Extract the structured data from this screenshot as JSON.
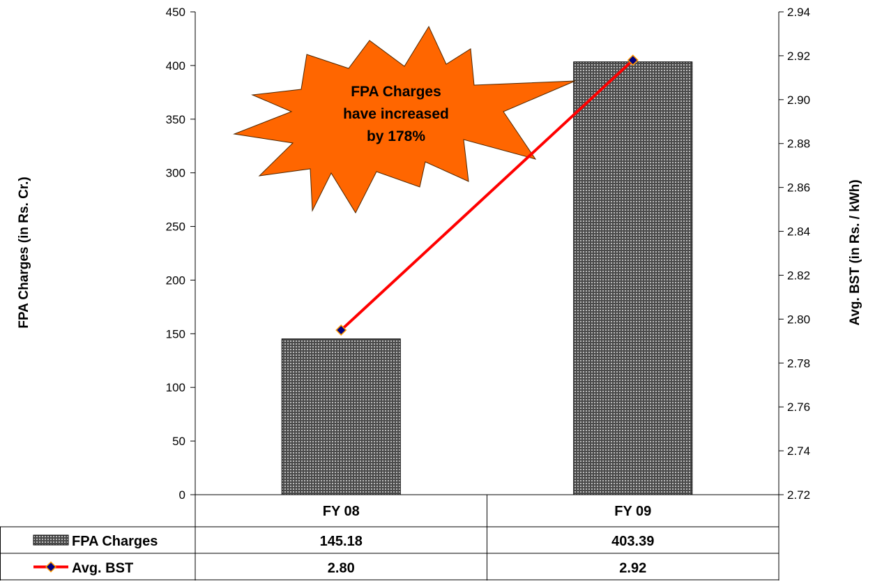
{
  "chart_data": {
    "type": "bar",
    "categories": [
      "FY 08",
      "FY 09"
    ],
    "series": [
      {
        "name": "FPA Charges",
        "type": "bar",
        "axis": "left",
        "values": [
          145.18,
          403.39
        ],
        "labels": [
          "145.18",
          "403.39"
        ]
      },
      {
        "name": "Avg. BST",
        "type": "line",
        "axis": "right",
        "values": [
          2.795,
          2.918
        ],
        "labels": [
          "2.80",
          "2.92"
        ]
      }
    ],
    "ylabel": "FPA Charges (in Rs. Cr.)",
    "y2label": "Avg. BST (in Rs. / kWh)",
    "ylim": [
      0,
      450
    ],
    "y2lim": [
      2.72,
      2.94
    ],
    "yticks": [
      "0",
      "50",
      "100",
      "150",
      "200",
      "250",
      "300",
      "350",
      "400",
      "450"
    ],
    "y2ticks": [
      "2.72",
      "2.74",
      "2.76",
      "2.78",
      "2.80",
      "2.82",
      "2.84",
      "2.86",
      "2.88",
      "2.90",
      "2.92",
      "2.94"
    ],
    "annotation": [
      "FPA Charges",
      "have increased",
      "by 178%"
    ],
    "data_table": true,
    "grid": false,
    "colors": {
      "bar": "#4a4a4a",
      "bar_dot": "#bdbdbd",
      "line": "#ff0000",
      "marker": "#000080",
      "marker_edge": "#ff9900",
      "callout": "#ff6600"
    }
  }
}
